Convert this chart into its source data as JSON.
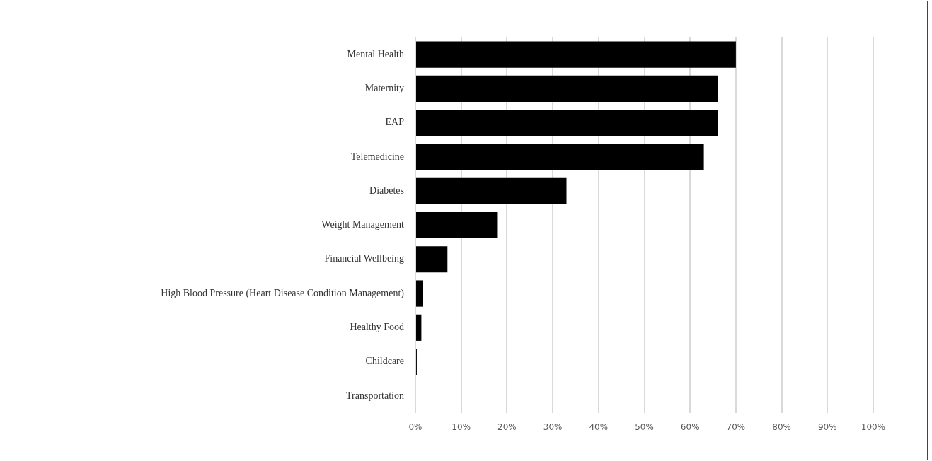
{
  "chart_data": {
    "type": "bar",
    "orientation": "horizontal",
    "categories": [
      "Mental Health",
      "Maternity",
      "EAP",
      "Telemedicine",
      "Diabetes",
      "Weight Management",
      "Financial Wellbeing",
      "High Blood Pressure (Heart Disease Condition Management)",
      "Healthy Food",
      "Childcare",
      "Transportation"
    ],
    "values": [
      70,
      66,
      66,
      63,
      33,
      18,
      7,
      1.7,
      1.3,
      0.3,
      0
    ],
    "color": "#000000",
    "xlim": [
      0,
      100
    ],
    "xticks": [
      {
        "value": 0,
        "label": "0%"
      },
      {
        "value": 10,
        "label": "10%"
      },
      {
        "value": 20,
        "label": "20%"
      },
      {
        "value": 30,
        "label": "30%"
      },
      {
        "value": 40,
        "label": "40%"
      },
      {
        "value": 50,
        "label": "50%"
      },
      {
        "value": 60,
        "label": "60%"
      },
      {
        "value": 70,
        "label": "70%"
      },
      {
        "value": 80,
        "label": "80%"
      },
      {
        "value": 90,
        "label": "90%"
      },
      {
        "value": 100,
        "label": "100%"
      }
    ],
    "grid": "x",
    "legend": false
  }
}
